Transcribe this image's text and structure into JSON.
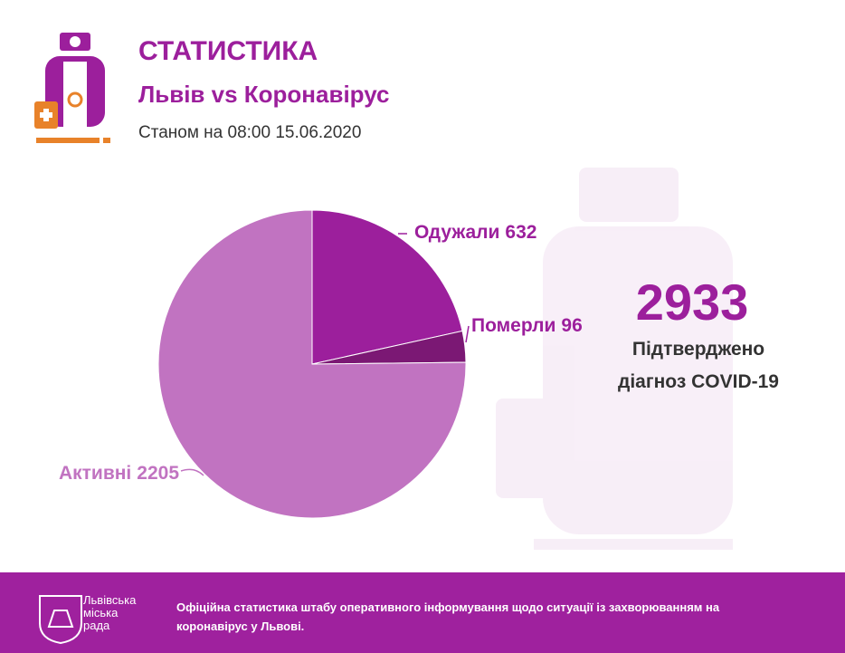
{
  "header": {
    "title": "СТАТИСТИКА",
    "subtitle": "Львів vs Коронавірус",
    "date": "Станом на 08:00 15.06.2020"
  },
  "chart_data": {
    "type": "pie",
    "categories": [
      "Одужали",
      "Померли",
      "Активні"
    ],
    "values": [
      632,
      96,
      2205
    ],
    "colors": [
      "#9c1f9c",
      "#7b1874",
      "#c173c1"
    ]
  },
  "summary": {
    "total": 2933,
    "caption": [
      "Підтверджено",
      "діагноз COVID-19"
    ]
  },
  "footer": {
    "logo": [
      "Львівська",
      "міська",
      "рада"
    ],
    "text": "Офіційна статистика штабу оперативного інформування щодо ситуації із захворюванням на коронавірус у Львові."
  }
}
